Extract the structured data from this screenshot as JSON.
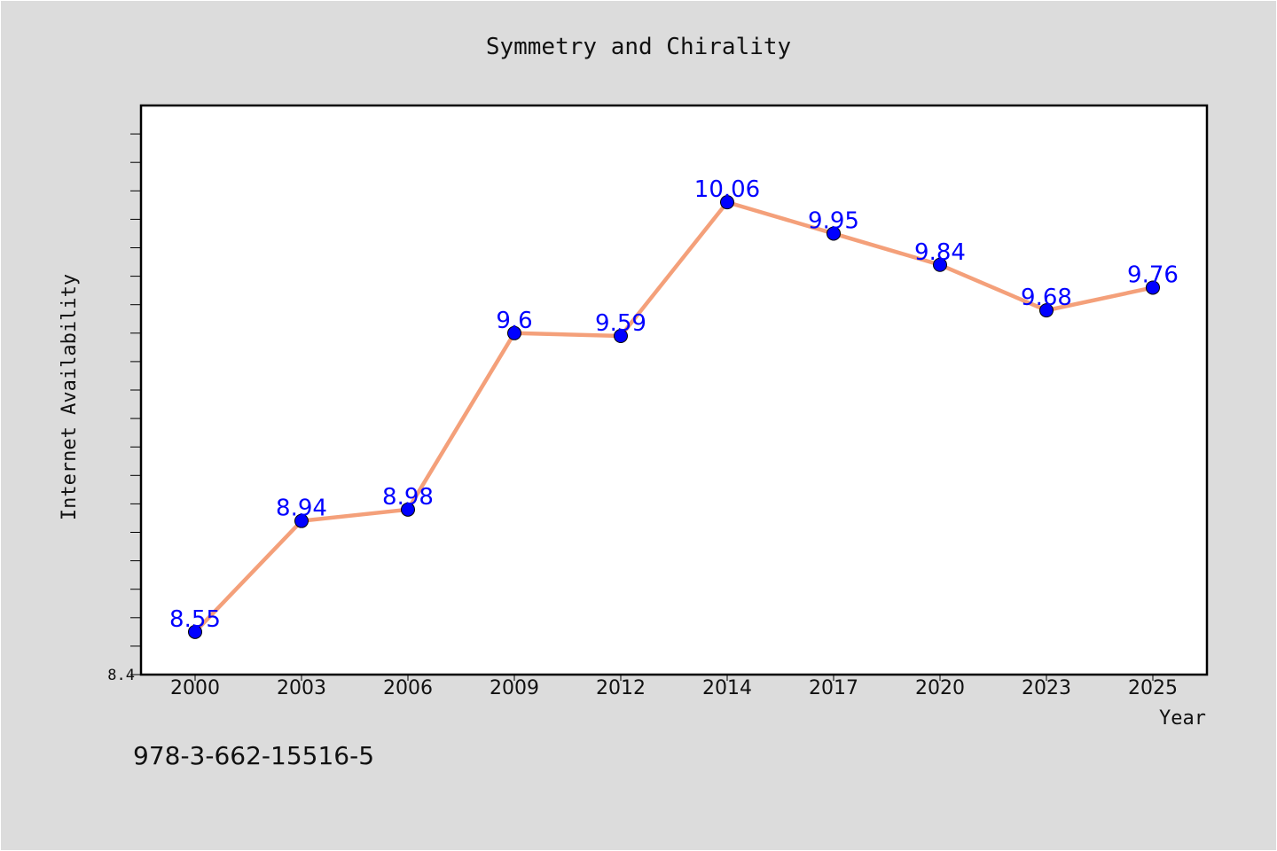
{
  "chart_data": {
    "type": "line",
    "title": "Symmetry and Chirality",
    "xlabel": "Year",
    "ylabel": "Internet Availability",
    "categories": [
      "2000",
      "2003",
      "2006",
      "2009",
      "2012",
      "2014",
      "2017",
      "2020",
      "2023",
      "2025"
    ],
    "series": [
      {
        "values": [
          8.55,
          8.94,
          8.98,
          9.6,
          9.59,
          10.06,
          9.95,
          9.84,
          9.68,
          9.76
        ],
        "labels": [
          "8.55",
          "8.94",
          "8.98",
          "9.6",
          "9.59",
          "10.06",
          "9.95",
          "9.84",
          "9.68",
          "9.76"
        ]
      }
    ],
    "ylim": [
      8.4,
      10.4
    ],
    "ytick_labels": [
      "8.4"
    ],
    "grid": false,
    "line_color": "#f4a07a",
    "marker_color": "#0000ff",
    "label_color": "#0000ff"
  },
  "footer_text": "978-3-662-15516-5"
}
